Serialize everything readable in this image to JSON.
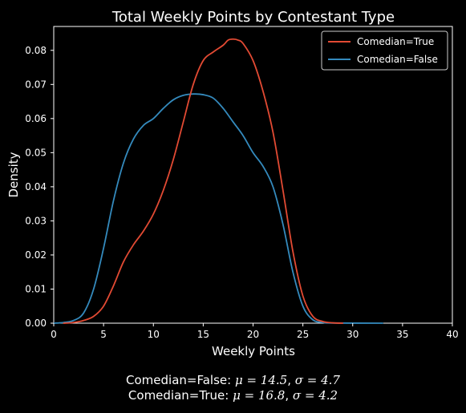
{
  "chart_data": {
    "type": "line",
    "title": "Total Weekly Points by Contestant Type",
    "xlabel": "Weekly Points",
    "ylabel": "Density",
    "xlim": [
      0,
      40
    ],
    "ylim": [
      0,
      0.087
    ],
    "xticks": [
      0,
      5,
      10,
      15,
      20,
      25,
      30,
      35,
      40
    ],
    "xtick_labels": [
      "0",
      "5",
      "10",
      "15",
      "20",
      "25",
      "30",
      "35",
      "40"
    ],
    "yticks": [
      0.0,
      0.01,
      0.02,
      0.03,
      0.04,
      0.05,
      0.06,
      0.07,
      0.08
    ],
    "ytick_labels": [
      "0.00",
      "0.01",
      "0.02",
      "0.03",
      "0.04",
      "0.05",
      "0.06",
      "0.07",
      "0.08"
    ],
    "grid": false,
    "legend_position": "top-right",
    "series": [
      {
        "name": "Comedian=True",
        "color": "#e24a33",
        "points": [
          [
            1.0,
            0.0
          ],
          [
            2.0,
            0.0002
          ],
          [
            3.0,
            0.0008
          ],
          [
            4.0,
            0.002
          ],
          [
            5.0,
            0.005
          ],
          [
            6.0,
            0.011
          ],
          [
            7.0,
            0.018
          ],
          [
            8.0,
            0.023
          ],
          [
            9.0,
            0.027
          ],
          [
            10.0,
            0.032
          ],
          [
            11.0,
            0.039
          ],
          [
            12.0,
            0.048
          ],
          [
            13.0,
            0.059
          ],
          [
            14.0,
            0.07
          ],
          [
            15.0,
            0.077
          ],
          [
            16.0,
            0.0795
          ],
          [
            17.0,
            0.0815
          ],
          [
            17.5,
            0.083
          ],
          [
            18.0,
            0.0833
          ],
          [
            18.5,
            0.083
          ],
          [
            19.0,
            0.082
          ],
          [
            20.0,
            0.077
          ],
          [
            21.0,
            0.068
          ],
          [
            22.0,
            0.056
          ],
          [
            23.0,
            0.039
          ],
          [
            24.0,
            0.021
          ],
          [
            25.0,
            0.008
          ],
          [
            26.0,
            0.002
          ],
          [
            27.0,
            0.0005
          ],
          [
            28.0,
            0.0001
          ],
          [
            29.0,
            0.0
          ]
        ]
      },
      {
        "name": "Comedian=False",
        "color": "#348abd",
        "points": [
          [
            0.0,
            0.0
          ],
          [
            1.0,
            0.0002
          ],
          [
            2.0,
            0.0008
          ],
          [
            3.0,
            0.003
          ],
          [
            4.0,
            0.01
          ],
          [
            5.0,
            0.022
          ],
          [
            6.0,
            0.036
          ],
          [
            7.0,
            0.047
          ],
          [
            8.0,
            0.054
          ],
          [
            9.0,
            0.058
          ],
          [
            10.0,
            0.06
          ],
          [
            11.0,
            0.063
          ],
          [
            12.0,
            0.0655
          ],
          [
            13.0,
            0.0668
          ],
          [
            14.0,
            0.0672
          ],
          [
            15.0,
            0.067
          ],
          [
            16.0,
            0.066
          ],
          [
            17.0,
            0.063
          ],
          [
            18.0,
            0.059
          ],
          [
            19.0,
            0.055
          ],
          [
            20.0,
            0.05
          ],
          [
            21.0,
            0.046
          ],
          [
            22.0,
            0.04
          ],
          [
            23.0,
            0.029
          ],
          [
            24.0,
            0.015
          ],
          [
            25.0,
            0.005
          ],
          [
            26.0,
            0.001
          ],
          [
            27.0,
            0.0002
          ],
          [
            28.0,
            5e-05
          ],
          [
            33.0,
            0.0
          ]
        ]
      }
    ],
    "caption": [
      {
        "label": "Comedian=False: ",
        "mu": "μ = 14.5",
        "sep": ", ",
        "sigma": "σ = 4.7"
      },
      {
        "label": "Comedian=True: ",
        "mu": "μ = 16.8",
        "sep": ", ",
        "sigma": "σ = 4.2"
      }
    ]
  }
}
